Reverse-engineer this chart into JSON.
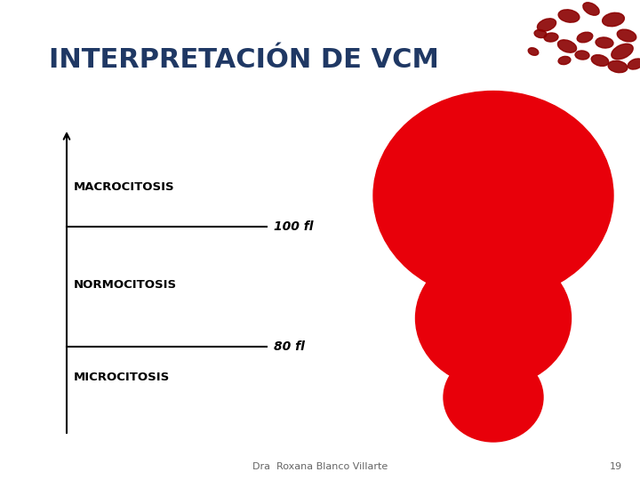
{
  "title": "INTERPRETACIÓN DE VCM",
  "title_color": "#1F3864",
  "title_fontsize": 22,
  "bg_color": "#FFFFFF",
  "labels": [
    "MACROCITOSIS",
    "NORMOCITOSIS",
    "MICROCITOSIS"
  ],
  "label_fontsize": 9.5,
  "label_fontweight": "bold",
  "line_labels": [
    "100 fl",
    "80 fl"
  ],
  "line_label_fontsize": 10,
  "line_label_fontstyle": "italic",
  "line_label_fontweight": "bold",
  "circle_color": "#E8000A",
  "footer_text": "Dra  Roxana Blanco Villarte",
  "footer_number": "19",
  "footer_fontsize": 8,
  "footer_color": "#666666"
}
